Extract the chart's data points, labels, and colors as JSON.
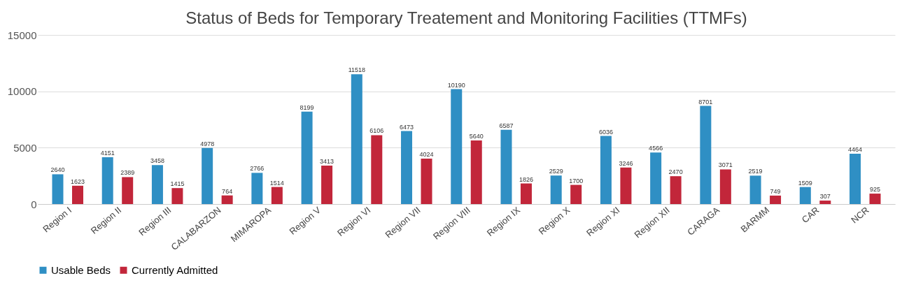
{
  "chart_data": {
    "type": "bar",
    "title": "Status of Beds for Temporary Treatement and Monitoring Facilities (TTMFs)",
    "categories": [
      "Region I",
      "Region II",
      "Region III",
      "CALABARZON",
      "MIMAROPA",
      "Region V",
      "Region VI",
      "Region VII",
      "Region VIII",
      "Region IX",
      "Region X",
      "Region XI",
      "Region XII",
      "CARAGA",
      "BARMM",
      "CAR",
      "NCR"
    ],
    "series": [
      {
        "name": "Usable Beds",
        "color": "#2f8fc4",
        "values": [
          2640,
          4151,
          3458,
          4978,
          2766,
          8199,
          11518,
          6473,
          10190,
          6587,
          2529,
          6036,
          4566,
          8701,
          2519,
          1509,
          4464
        ]
      },
      {
        "name": "Currently Admitted",
        "color": "#c2263a",
        "values": [
          1623,
          2389,
          1415,
          764,
          1514,
          3413,
          6106,
          4024,
          5640,
          1826,
          1700,
          3246,
          2470,
          3071,
          749,
          307,
          925
        ]
      }
    ],
    "ylim": [
      0,
      15000
    ],
    "yticks": [
      0,
      5000,
      10000,
      15000
    ],
    "grid": "y",
    "legend": "bottom",
    "data_labels": true
  }
}
